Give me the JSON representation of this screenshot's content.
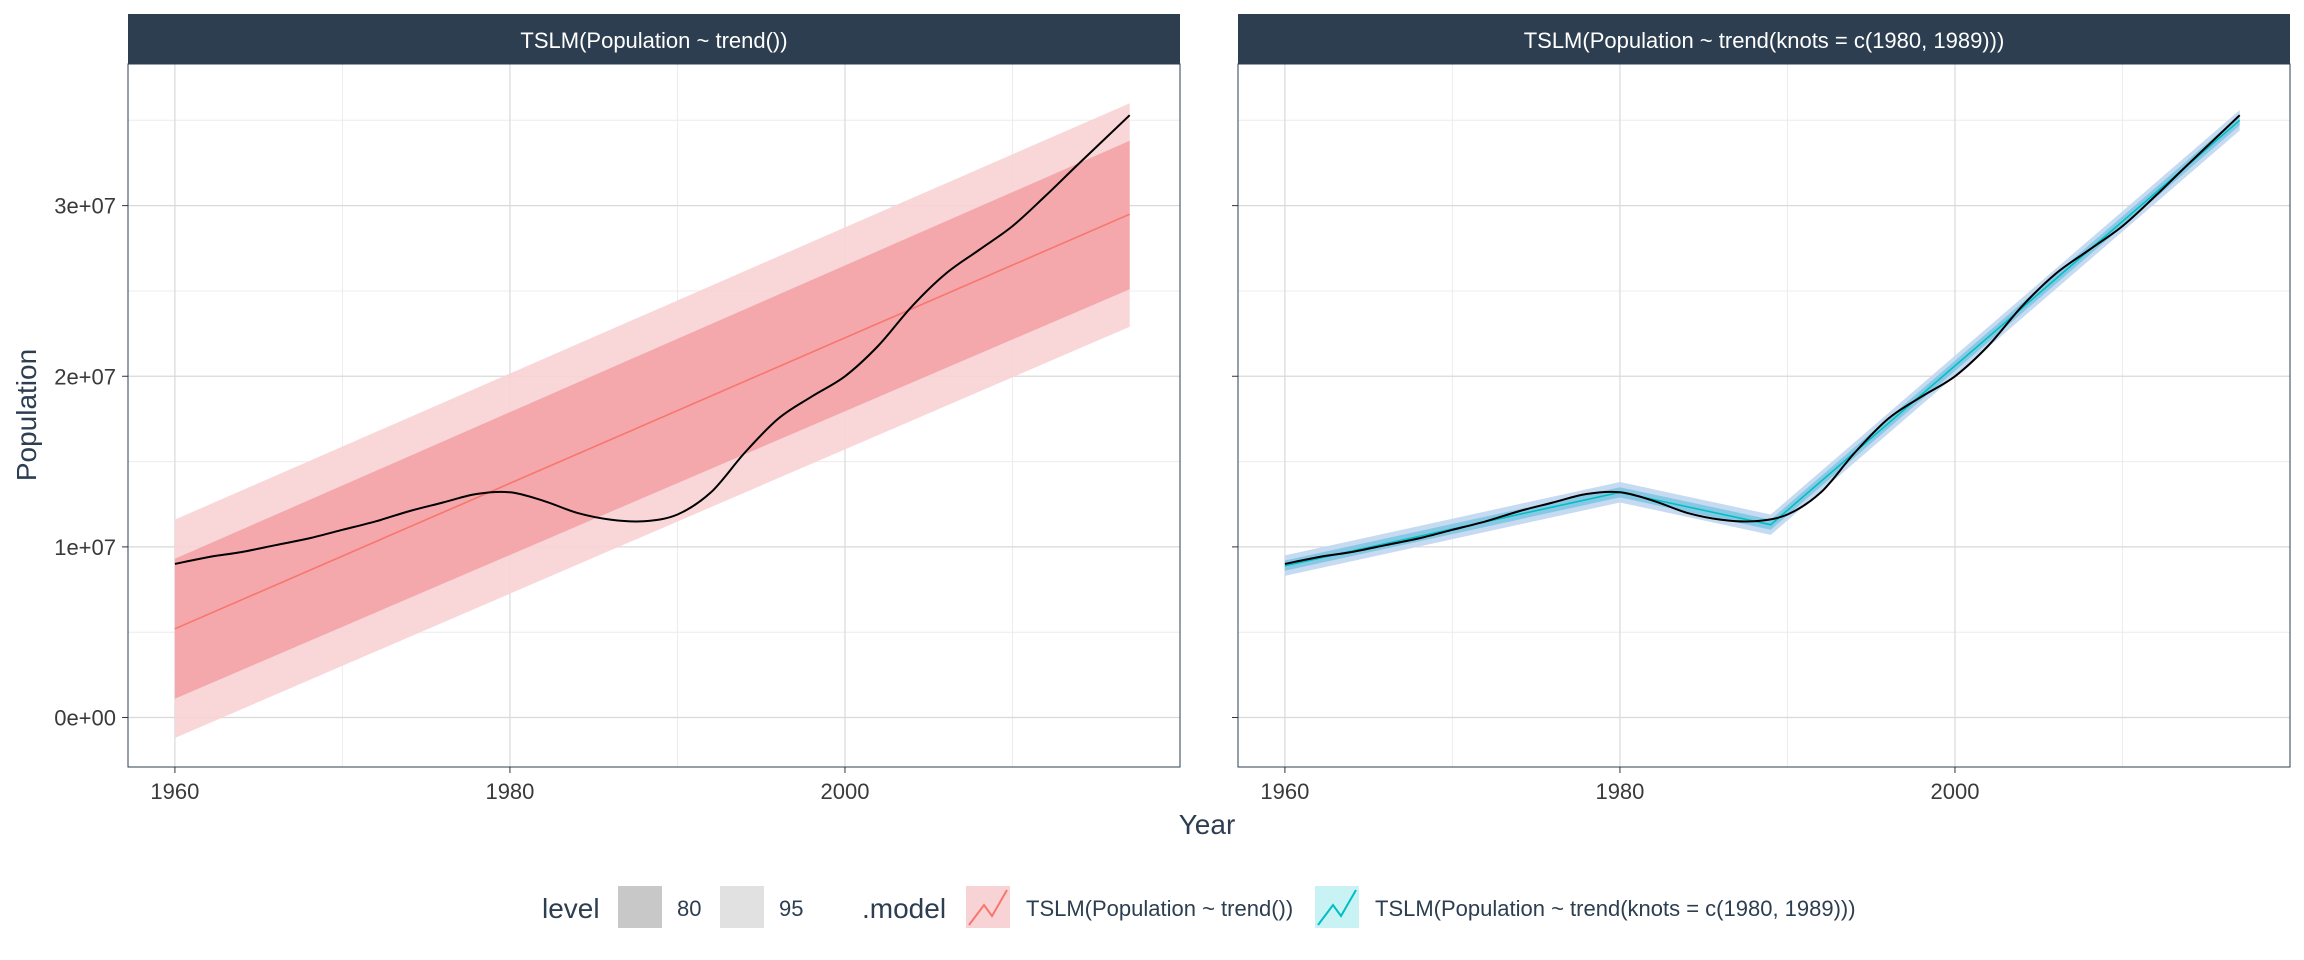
{
  "chart_data": {
    "type": "line",
    "x_label": "Year",
    "y_label": "Population",
    "x_ticks": [
      1960,
      1980,
      2000
    ],
    "y_ticks": [
      0,
      10000000,
      20000000,
      30000000
    ],
    "y_tick_labels": [
      "0e+00",
      "1e+07",
      "2e+07",
      "3e+07"
    ],
    "xlim": [
      1957.2,
      2020.0
    ],
    "ylim": [
      -2900000,
      38300000
    ],
    "grid": true,
    "colors": {
      "strip_bg": "#2c3e50",
      "red": "#f8766d",
      "red_band80": "#f3a3a6",
      "red_band95": "#f8d3d5",
      "cyan": "#00bfc4",
      "cyan_band80": "#7fc6e2",
      "cyan_band95": "#c0d7f0",
      "grid": "#d9d9d9",
      "observed": "#000000"
    },
    "observed": {
      "name": "",
      "x": [
        1960,
        1962,
        1964,
        1966,
        1968,
        1970,
        1972,
        1974,
        1976,
        1978,
        1980,
        1982,
        1984,
        1986,
        1988,
        1990,
        1992,
        1994,
        1996,
        1998,
        2000,
        2002,
        2004,
        2006,
        2008,
        2010,
        2012,
        2014,
        2017
      ],
      "y": [
        9000000,
        9400000,
        9700000,
        10100000,
        10500000,
        11000000,
        11500000,
        12100000,
        12600000,
        13100000,
        13200000,
        12700000,
        12000000,
        11600000,
        11500000,
        11900000,
        13200000,
        15500000,
        17500000,
        18800000,
        20000000,
        21800000,
        24100000,
        26000000,
        27400000,
        28800000,
        30600000,
        32500000,
        35300000
      ]
    },
    "facets": [
      {
        "strip_label": "TSLM(Population ~ trend())",
        "model_key": "red",
        "fit": {
          "x": [
            1960,
            2017
          ],
          "y": [
            5200000,
            29500000
          ]
        },
        "band80": {
          "x": [
            1960,
            2017
          ],
          "lo": [
            1100000,
            25100000
          ],
          "hi": [
            9300000,
            33800000
          ]
        },
        "band95": {
          "x": [
            1960,
            2017
          ],
          "lo": [
            -1200000,
            22900000
          ],
          "hi": [
            11600000,
            36000000
          ]
        }
      },
      {
        "strip_label": "TSLM(Population ~ trend(knots = c(1980, 1989)))",
        "model_key": "cyan",
        "fit": {
          "x": [
            1960,
            1980,
            1989,
            2017
          ],
          "y": [
            8900000,
            13200000,
            11300000,
            35000000
          ]
        },
        "band80": {
          "x": [
            1960,
            1980,
            1989,
            2017
          ],
          "lo": [
            8600000,
            12900000,
            11000000,
            34700000
          ],
          "hi": [
            9200000,
            13500000,
            11600000,
            35300000
          ]
        },
        "band95": {
          "x": [
            1960,
            1980,
            1989,
            2017
          ],
          "lo": [
            8300000,
            12600000,
            10700000,
            34400000
          ],
          "hi": [
            9500000,
            13800000,
            11900000,
            35600000
          ]
        }
      }
    ],
    "legend": {
      "position": "bottom",
      "level_title": "level",
      "levels": [
        "80",
        "95"
      ],
      "model_title": ".model",
      "models": [
        "TSLM(Population ~ trend())",
        "TSLM(Population ~ trend(knots = c(1980, 1989)))"
      ]
    }
  }
}
